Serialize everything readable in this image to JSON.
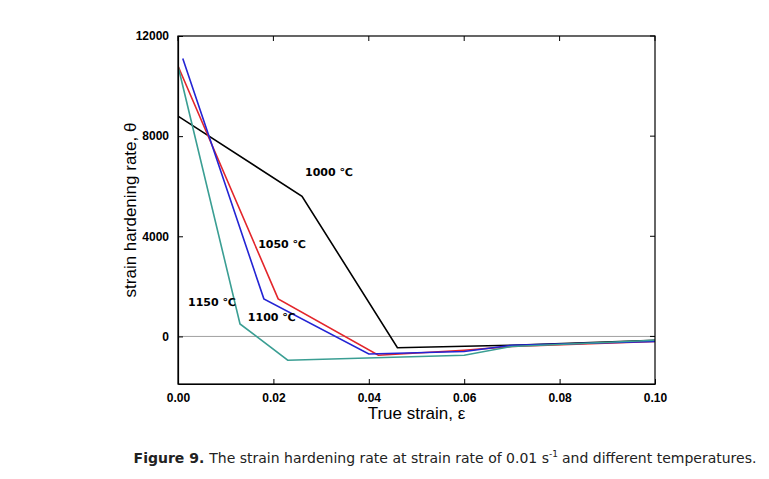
{
  "chart_data": {
    "type": "line",
    "caption": {
      "label": "Figure 9.",
      "text": "The strain hardening rate at strain rate of 0.01 s",
      "superscript": "-1",
      "end": "and different temperatures."
    },
    "x_label": "True strain, ε",
    "y_label": "strain hardening rate, θ",
    "xlim": [
      0,
      0.1
    ],
    "xticks": [
      {
        "value": 0,
        "label": "0.00"
      },
      {
        "value": 0.02,
        "label": "0.02"
      },
      {
        "value": 0.04,
        "label": "0.04"
      },
      {
        "value": 0.06,
        "label": "0.06"
      },
      {
        "value": 0.08,
        "label": "0.08"
      },
      {
        "value": 0.1,
        "label": "0.10"
      }
    ],
    "ylim": [
      -1900,
      12000
    ],
    "yticks": [
      0,
      4000,
      8000,
      12000
    ],
    "reference_line": 0,
    "series": [
      {
        "name": "1000 ℃",
        "color": "#000000",
        "x": [
          0,
          0.026,
          0.046,
          0.07,
          0.1
        ],
        "values": [
          8800,
          5600,
          -450,
          -350,
          -150
        ]
      },
      {
        "name": "1050 ℃",
        "color": "#e3262b",
        "x": [
          0,
          0.021,
          0.042,
          0.06,
          0.07,
          0.1
        ],
        "values": [
          10800,
          1500,
          -750,
          -550,
          -400,
          -200
        ]
      },
      {
        "name": "1100 ℃",
        "color": "#2424d4",
        "x": [
          0.001,
          0.018,
          0.04,
          0.06,
          0.07,
          0.1
        ],
        "values": [
          11100,
          1500,
          -700,
          -600,
          -350,
          -200
        ]
      },
      {
        "name": "1150 ℃",
        "color": "#3a9e93",
        "x": [
          0,
          0.013,
          0.023,
          0.06,
          0.07,
          0.1
        ],
        "values": [
          10800,
          500,
          -950,
          -750,
          -400,
          -150
        ]
      }
    ]
  }
}
